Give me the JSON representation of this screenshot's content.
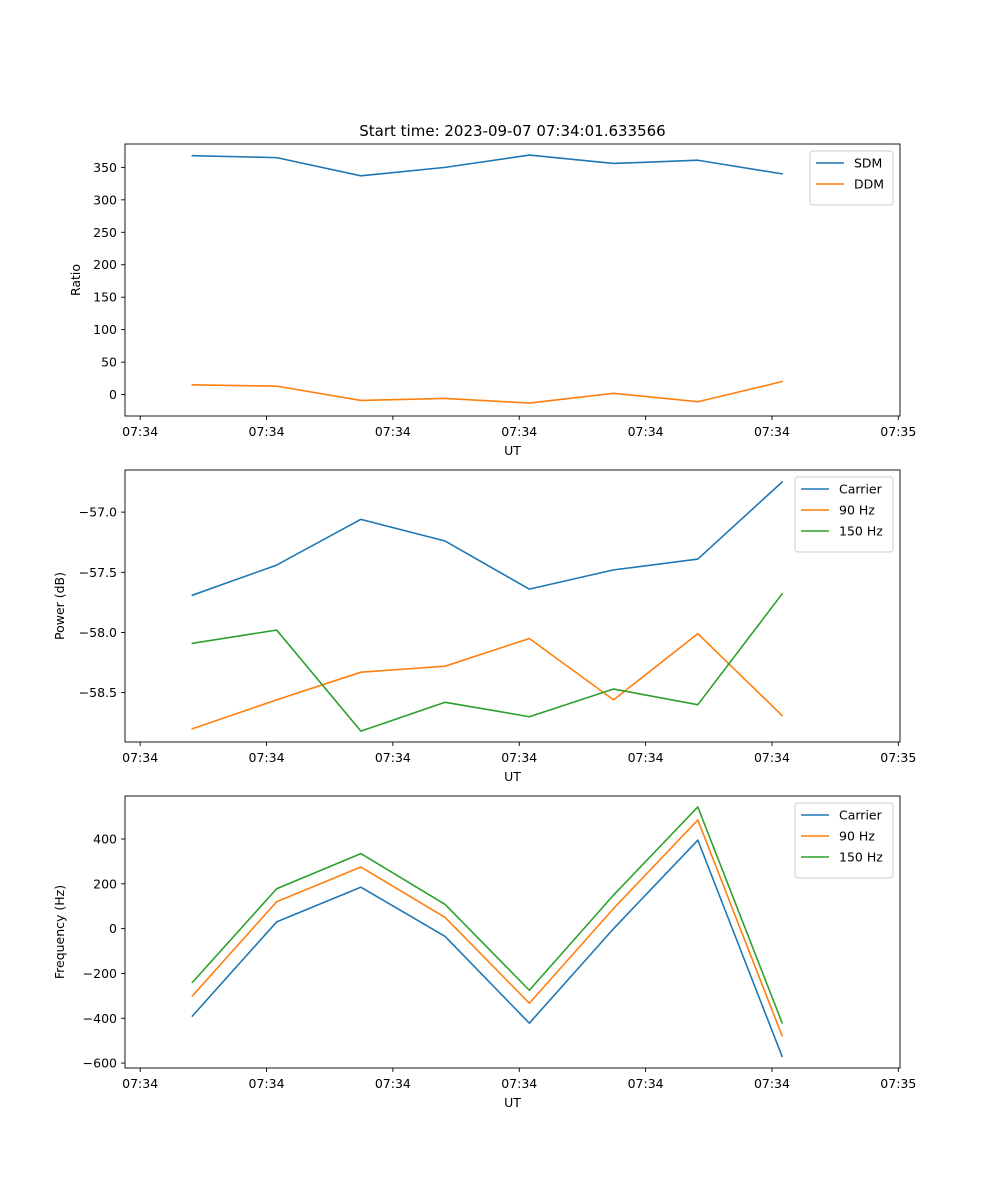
{
  "figure_title": "Start time: 2023-09-07 07:34:01.633566",
  "colors": {
    "c0": "#1f77b4",
    "c1": "#ff7f0e",
    "c2": "#2ca02c"
  },
  "chart_data": [
    {
      "type": "line",
      "title": "Start time: 2023-09-07 07:34:01.633566",
      "xlabel": "UT",
      "ylabel": "Ratio",
      "x": [
        1,
        2,
        3,
        4,
        5,
        6,
        7,
        8
      ],
      "xlim": [
        0.2,
        9.4
      ],
      "xticks": [
        0.38,
        1.88,
        3.38,
        4.88,
        6.38,
        7.88,
        9.38
      ],
      "xtick_labels": [
        "07:34",
        "07:34",
        "07:34",
        "07:34",
        "07:34",
        "07:34",
        "07:35"
      ],
      "ylim": [
        -33,
        386
      ],
      "yticks": [
        0,
        50,
        100,
        150,
        200,
        250,
        300,
        350
      ],
      "ytick_labels": [
        "0",
        "50",
        "100",
        "150",
        "200",
        "250",
        "300",
        "350"
      ],
      "legend_position": "top-right",
      "grid": false,
      "series": [
        {
          "name": "SDM",
          "color": "#1f77b4",
          "values": [
            368,
            365,
            337,
            350,
            369,
            356,
            361,
            340
          ]
        },
        {
          "name": "DDM",
          "color": "#ff7f0e",
          "values": [
            15,
            13,
            -9,
            -6,
            -13,
            2,
            -11,
            20
          ]
        }
      ]
    },
    {
      "type": "line",
      "title": "",
      "xlabel": "UT",
      "ylabel": "Power (dB)",
      "x": [
        1,
        2,
        3,
        4,
        5,
        6,
        7,
        8
      ],
      "xlim": [
        0.2,
        9.4
      ],
      "xticks": [
        0.38,
        1.88,
        3.38,
        4.88,
        6.38,
        7.88,
        9.38
      ],
      "xtick_labels": [
        "07:34",
        "07:34",
        "07:34",
        "07:34",
        "07:34",
        "07:34",
        "07:35"
      ],
      "ylim": [
        -58.91,
        -56.65
      ],
      "yticks": [
        -58.5,
        -58.0,
        -57.5,
        -57.0
      ],
      "ytick_labels": [
        "−58.5",
        "−58.0",
        "−57.5",
        "−57.0"
      ],
      "legend_position": "top-right",
      "grid": false,
      "series": [
        {
          "name": "Carrier",
          "color": "#1f77b4",
          "values": [
            -57.69,
            -57.44,
            -57.06,
            -57.24,
            -57.64,
            -57.48,
            -57.39,
            -56.75
          ]
        },
        {
          "name": "90 Hz",
          "color": "#ff7f0e",
          "values": [
            -58.8,
            -58.56,
            -58.33,
            -58.28,
            -58.05,
            -58.56,
            -58.01,
            -58.69
          ]
        },
        {
          "name": "150 Hz",
          "color": "#2ca02c",
          "values": [
            -58.09,
            -57.98,
            -58.82,
            -58.58,
            -58.7,
            -58.47,
            -58.6,
            -57.68
          ]
        }
      ]
    },
    {
      "type": "line",
      "title": "",
      "xlabel": "UT",
      "ylabel": "Frequency (Hz)",
      "x": [
        1,
        2,
        3,
        4,
        5,
        6,
        7,
        8
      ],
      "xlim": [
        0.2,
        9.4
      ],
      "xticks": [
        0.38,
        1.88,
        3.38,
        4.88,
        6.38,
        7.88,
        9.38
      ],
      "xtick_labels": [
        "07:34",
        "07:34",
        "07:34",
        "07:34",
        "07:34",
        "07:34",
        "07:35"
      ],
      "ylim": [
        -622,
        592
      ],
      "yticks": [
        -600,
        -400,
        -200,
        0,
        200,
        400
      ],
      "ytick_labels": [
        "−600",
        "−400",
        "−200",
        "0",
        "200",
        "400"
      ],
      "legend_position": "top-right",
      "grid": false,
      "series": [
        {
          "name": "Carrier",
          "color": "#1f77b4",
          "values": [
            -390,
            30,
            185,
            -35,
            -422,
            0,
            395,
            -570
          ]
        },
        {
          "name": "90 Hz",
          "color": "#ff7f0e",
          "values": [
            -300,
            120,
            275,
            50,
            -333,
            90,
            485,
            -478
          ]
        },
        {
          "name": "150 Hz",
          "color": "#2ca02c",
          "values": [
            -240,
            178,
            335,
            108,
            -275,
            150,
            543,
            -420
          ]
        }
      ]
    }
  ]
}
